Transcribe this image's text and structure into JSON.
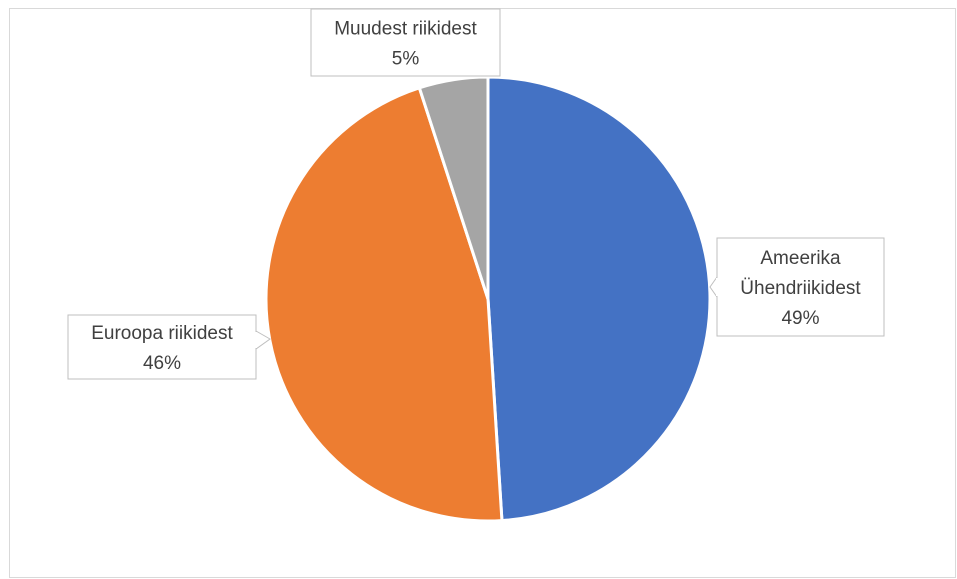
{
  "chart_data": {
    "type": "pie",
    "title": "",
    "series": [
      {
        "values": [
          49,
          46,
          5
        ],
        "categories": [
          "Ameerika Ühendriikidest",
          "Euroopa riikidest",
          "Muudest riikidest"
        ]
      }
    ],
    "slices": [
      {
        "label_lines": [
          "Ameerika",
          "Ühendriikidest"
        ],
        "percent_label": "49%",
        "value": 49,
        "color": "#4472C4"
      },
      {
        "label_lines": [
          "Euroopa riikidest"
        ],
        "percent_label": "46%",
        "value": 46,
        "color": "#ED7D31"
      },
      {
        "label_lines": [
          "Muudest riikidest"
        ],
        "percent_label": "5%",
        "value": 5,
        "color": "#A5A5A5"
      }
    ],
    "legend": "none",
    "data_labels": "callouts"
  }
}
